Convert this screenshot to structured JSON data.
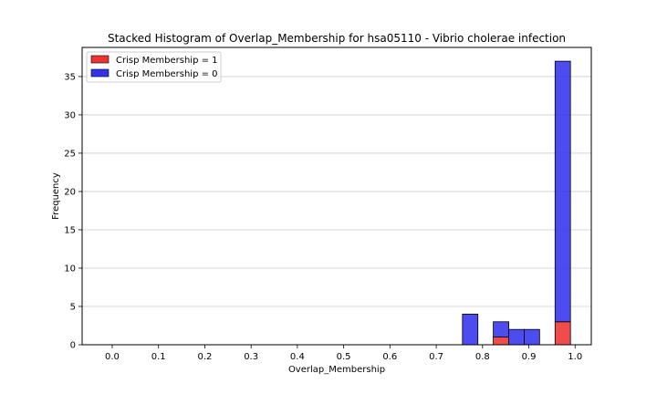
{
  "chart_data": {
    "type": "bar",
    "stacked": true,
    "title": "Stacked Histogram of Overlap_Membership for hsa05110 - Vibrio cholerae infection",
    "xlabel": "Overlap_Membership",
    "ylabel": "Frequency",
    "xlim": [
      -0.065,
      1.035
    ],
    "ylim": [
      0,
      38.8
    ],
    "x_ticks": [
      0.0,
      0.1,
      0.2,
      0.3,
      0.4,
      0.5,
      0.6,
      0.7,
      0.8,
      0.9,
      1.0
    ],
    "x_tick_labels": [
      "0.0",
      "0.1",
      "0.2",
      "0.3",
      "0.4",
      "0.5",
      "0.6",
      "0.7",
      "0.8",
      "0.9",
      "1.0"
    ],
    "y_ticks": [
      0,
      5,
      10,
      15,
      20,
      25,
      30,
      35
    ],
    "y_tick_labels": [
      "0",
      "5",
      "10",
      "15",
      "20",
      "25",
      "30",
      "35"
    ],
    "grid": "y",
    "legend_position": "upper-left",
    "bin_edges": [
      0.7567,
      0.79,
      0.8233,
      0.8567,
      0.89,
      0.9233,
      0.9567,
      0.99
    ],
    "series": [
      {
        "name": "Crisp Membership = 1",
        "color": "#ee3333",
        "values": [
          0,
          0,
          1,
          0,
          0,
          0,
          3
        ]
      },
      {
        "name": "Crisp Membership = 0",
        "color": "#3333ee",
        "values": [
          4,
          0,
          2,
          2,
          2,
          0,
          34
        ]
      }
    ]
  }
}
